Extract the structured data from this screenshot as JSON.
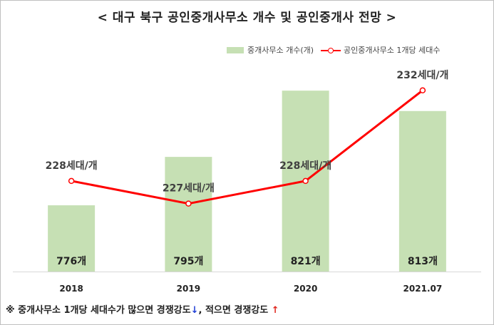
{
  "title": "< 대구 북구 공인중개사무소 개수 및 공인중개사 전망 >",
  "legend": {
    "bar_label": "중개사무소 개수(개)",
    "line_label": "공인중개사무소 1개당 세대수"
  },
  "note": {
    "prefix": "※ 중개사무소 1개당 세대수가 많으면 경쟁강도",
    "down_arrow": "↓",
    "middle": ", 적으면 경쟁강도",
    "up_arrow": "↑"
  },
  "colors": {
    "bar": "#c6e0b4",
    "line": "#ff0000",
    "axis": "#d9d9d9"
  },
  "chart_data": {
    "type": "bar",
    "categories": [
      "2018",
      "2019",
      "2020",
      "2021.07"
    ],
    "series": [
      {
        "name": "중개사무소 개수(개)",
        "type": "bar",
        "values": [
          776,
          795,
          821,
          813
        ],
        "labels": [
          "776개",
          "795개",
          "821개",
          "813개"
        ]
      },
      {
        "name": "공인중개사무소 1개당 세대수",
        "type": "line",
        "values": [
          228,
          227,
          228,
          232
        ],
        "labels": [
          "228세대/개",
          "227세대/개",
          "228세대/개",
          "232세대/개"
        ]
      }
    ],
    "bar_axis_range": [
      750,
      830
    ],
    "line_axis_range": [
      224,
      233
    ],
    "grid": false,
    "legend_position": "top-right"
  }
}
